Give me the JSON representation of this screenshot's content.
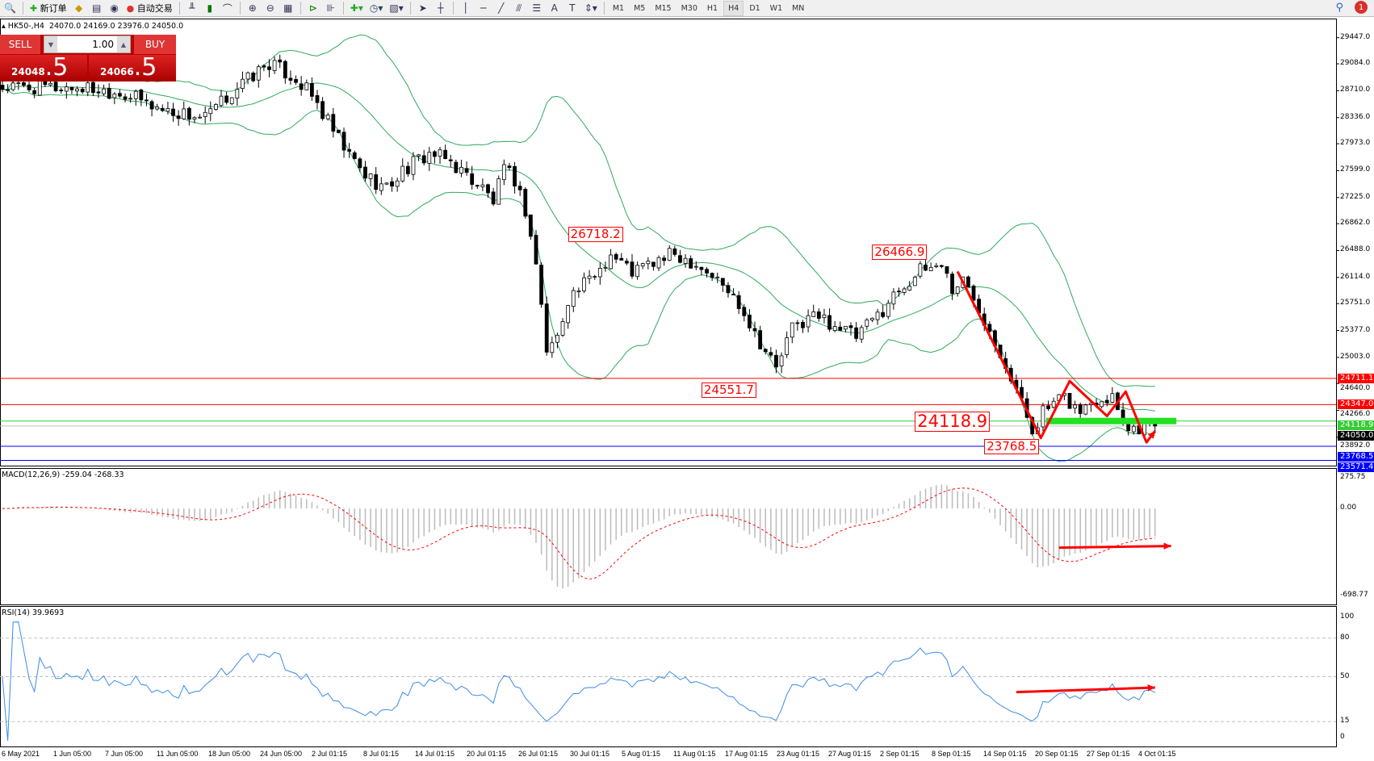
{
  "toolbar": {
    "new_order": "新订单",
    "auto_trading": "自动交易",
    "icons": [
      "zoom-icon",
      "new-order-icon",
      "expert-icon",
      "navigator-icon",
      "signal-icon",
      "autotrading-icon",
      "bar-chart-icon",
      "candle-chart-icon",
      "line-chart-icon",
      "zoom-in-icon",
      "zoom-out-icon",
      "tile-icon",
      "autoscroll-icon",
      "chart-shift-icon",
      "indicator-add-icon",
      "period-icon",
      "template-icon",
      "cursor-icon",
      "crosshair-icon",
      "vline-icon",
      "hline-icon",
      "trendline-icon",
      "fibo-icon",
      "text-icon",
      "label-icon",
      "arrow-icon"
    ],
    "timeframes": [
      "M1",
      "M5",
      "M15",
      "M30",
      "H1",
      "H4",
      "D1",
      "W1",
      "MN"
    ],
    "active_timeframe": "H4",
    "notification_count": "1"
  },
  "header": {
    "symbol": "HK50-,H4",
    "ohlc": "24070.0 24169.0 23976.0 24050.0"
  },
  "trade_panel": {
    "sell_label": "SELL",
    "buy_label": "BUY",
    "lot": "1.00",
    "sell_main": "24048",
    "sell_big": ".5",
    "buy_main": "24066",
    "buy_big": ".5"
  },
  "chart_data": {
    "type": "candlestick",
    "price_axis_ticks": [
      "29447.0",
      "29084.0",
      "28710.0",
      "28336.0",
      "27973.0",
      "27599.0",
      "27225.0",
      "26862.0",
      "26488.0",
      "26114.0",
      "25751.0",
      "25377.0",
      "25003.0",
      "24640.0",
      "24266.0",
      "23892.0"
    ],
    "price_anchors": [
      [
        0,
        28753
      ],
      [
        15,
        28753
      ],
      [
        22,
        28693
      ],
      [
        30,
        28449
      ],
      [
        38,
        28327
      ],
      [
        44,
        28753
      ],
      [
        50,
        29094
      ],
      [
        55,
        28875
      ],
      [
        58,
        28632
      ],
      [
        64,
        27901
      ],
      [
        68,
        27536
      ],
      [
        72,
        27353
      ],
      [
        75,
        27597
      ],
      [
        80,
        27840
      ],
      [
        84,
        27719
      ],
      [
        86,
        27597
      ],
      [
        90,
        27353
      ],
      [
        92,
        27171
      ],
      [
        94,
        27597
      ],
      [
        96,
        27475
      ],
      [
        98,
        27049
      ],
      [
        100,
        26318
      ],
      [
        102,
        25101
      ],
      [
        104,
        25283
      ],
      [
        106,
        25831
      ],
      [
        110,
        26075
      ],
      [
        114,
        26440
      ],
      [
        118,
        26197
      ],
      [
        122,
        26318
      ],
      [
        126,
        26440
      ],
      [
        130,
        26318
      ],
      [
        134,
        26075
      ],
      [
        138,
        25770
      ],
      [
        142,
        25222
      ],
      [
        145,
        24857
      ],
      [
        148,
        25405
      ],
      [
        152,
        25588
      ],
      [
        156,
        25466
      ],
      [
        160,
        25283
      ],
      [
        164,
        25588
      ],
      [
        168,
        25953
      ],
      [
        172,
        26197
      ],
      [
        176,
        26318
      ],
      [
        178,
        25953
      ],
      [
        180,
        26075
      ],
      [
        183,
        25709
      ],
      [
        187,
        25101
      ],
      [
        190,
        24553
      ],
      [
        193,
        24005
      ],
      [
        195,
        24249
      ],
      [
        199,
        24431
      ],
      [
        202,
        24249
      ],
      [
        205,
        24431
      ],
      [
        208,
        24492
      ],
      [
        211,
        24005
      ],
      [
        214,
        24066
      ],
      [
        216,
        24050
      ]
    ],
    "bollinger": {
      "period": 20,
      "deviation": 2,
      "color": "#2eaa5c"
    },
    "hlines": [
      {
        "value": 24711.1,
        "label": "24711.1",
        "color": "#ff0000"
      },
      {
        "value": 24347.0,
        "label": "24347.0",
        "color": "#ff0000"
      },
      {
        "value": 24118.9,
        "label": "24118.9",
        "color": "#33cc33"
      },
      {
        "value": 24050.0,
        "label": "24050.0",
        "color": "#000000"
      },
      {
        "value": 23768.5,
        "label": "23768.5",
        "color": "#0000ff"
      },
      {
        "value": 23571.4,
        "label": "23571.4",
        "color": "#0000ff"
      }
    ],
    "price_labels": [
      {
        "text": "26718.2",
        "bar": 106,
        "value": 26718.2,
        "big": false
      },
      {
        "text": "26466.9",
        "bar": 163,
        "value": 26466.9,
        "big": false
      },
      {
        "text": "24551.7",
        "bar": 131,
        "value": 24551.7,
        "big": false
      },
      {
        "text": "24118.9",
        "bar": 171,
        "value": 24118.9,
        "big": true
      },
      {
        "text": "23768.5",
        "bar": 184,
        "value": 23768.5,
        "big": false
      }
    ],
    "zigzag": [
      [
        179,
        26197
      ],
      [
        194.6,
        23883
      ],
      [
        200,
        24675
      ],
      [
        207,
        24188
      ],
      [
        210.5,
        24528
      ],
      [
        214.4,
        23822
      ],
      [
        216,
        23981
      ]
    ],
    "support_bar": {
      "from": 195.6,
      "to": 220,
      "value": 24118.9,
      "color": "#22e022"
    },
    "macd": {
      "label": "MACD(12,26,9) -259.04 -268.33",
      "fast": 12,
      "slow": 26,
      "signal": 9,
      "max": 275.75,
      "min": -698.77,
      "ticks": [
        "275.75",
        "0.00",
        "-698.77"
      ],
      "arrow": [
        [
          198,
          -303
        ],
        [
          219,
          -290
        ]
      ]
    },
    "rsi": {
      "label": "RSI(14) 39.9693",
      "period": 14,
      "levels": [
        80,
        50,
        15
      ],
      "ticks": [
        "100",
        "80",
        "50",
        "15",
        "0"
      ],
      "color": "#3c8be6",
      "arrow": [
        [
          190,
          38
        ],
        [
          216,
          41.5
        ]
      ]
    },
    "time_labels": [
      "6 May 2021",
      "1 Jun 05:00",
      "7 Jun 05:00",
      "11 Jun 05:00",
      "18 Jun 05:00",
      "24 Jun 05:00",
      "2 Jul 01:15",
      "8 Jul 01:15",
      "14 Jul 01:15",
      "20 Jul 01:15",
      "26 Jul 01:15",
      "30 Jul 01:15",
      "5 Aug 01:15",
      "11 Aug 01:15",
      "17 Aug 01:15",
      "23 Aug 01:15",
      "27 Aug 01:15",
      "2 Sep 01:15",
      "8 Sep 01:15",
      "14 Sep 01:15",
      "20 Sep 01:15",
      "27 Sep 01:15",
      "4 Oct 01:15"
    ]
  }
}
